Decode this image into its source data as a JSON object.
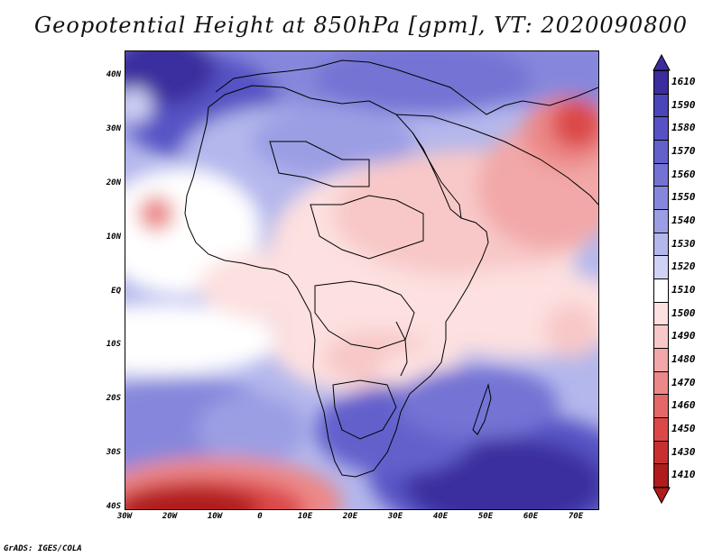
{
  "title": "Geopotential Height at 850hPa [gpm], VT: 2020090800",
  "credit": "GrADS: IGES/COLA",
  "map": {
    "variable": "Geopotential Height",
    "level": "850hPa",
    "units": "gpm",
    "valid_time": "2020090800",
    "lat_labels": [
      "40N",
      "30N",
      "20N",
      "10N",
      "EQ",
      "10S",
      "20S",
      "30S",
      "40S"
    ],
    "lon_labels": [
      "30W",
      "20W",
      "10W",
      "0",
      "10E",
      "20E",
      "30E",
      "40E",
      "50E",
      "60E",
      "70E"
    ]
  },
  "colorbar": {
    "levels": [
      "1610",
      "1590",
      "1580",
      "1570",
      "1560",
      "1550",
      "1540",
      "1530",
      "1520",
      "1510",
      "1500",
      "1490",
      "1480",
      "1470",
      "1460",
      "1450",
      "1430",
      "1410"
    ],
    "colors": [
      "#3b2d9e",
      "#4a45b8",
      "#5752c4",
      "#6360cc",
      "#7473d4",
      "#8687dc",
      "#9c9ee4",
      "#b4b7ec",
      "#d0d2f5",
      "#ffffff",
      "#fde0e0",
      "#f8c8c8",
      "#f2a8a8",
      "#ec8888",
      "#e56868",
      "#dc4848",
      "#c83030",
      "#b01c1c"
    ]
  },
  "colors": {
    "ocean_high": "#4a45b8",
    "ocean_mid": "#8687dc",
    "neutral": "#ffffff",
    "land_low": "#f8c8c8",
    "deep_low": "#b01c1c"
  }
}
